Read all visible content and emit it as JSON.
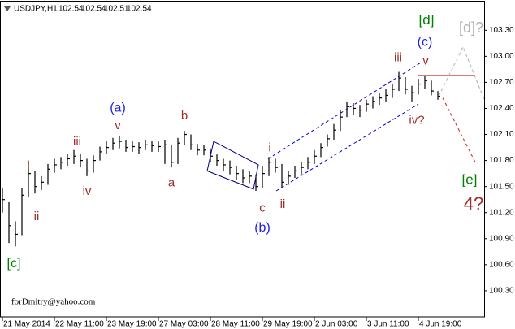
{
  "chart_data": {
    "type": "ohlc",
    "title": "USDJPY,H1",
    "quote": [
      102.54,
      102.54,
      102.51,
      102.54
    ],
    "watermark": "forDmitry@yahoo.com",
    "color": "#000000",
    "xlim": [
      -1.5,
      296.5
    ],
    "xticks": [
      {
        "value": 0,
        "label": "21 May 2014"
      },
      {
        "value": 32,
        "label": "22 May 11:00"
      },
      {
        "value": 64,
        "label": "23 May 19:00"
      },
      {
        "value": 96,
        "label": "27 May 03:00"
      },
      {
        "value": 128,
        "label": "28 May 11:00"
      },
      {
        "value": 160,
        "label": "29 May 19:00"
      },
      {
        "value": 192,
        "label": "2 Jun 03:00"
      },
      {
        "value": 224,
        "label": "3 Jun 11:00"
      },
      {
        "value": 256,
        "label": "4 Jun 19:00"
      }
    ],
    "ylim": [
      100.0,
      103.63
    ],
    "yticks": [
      {
        "value": 103.3,
        "label": "103.30"
      },
      {
        "value": 103.0,
        "label": "103.00"
      },
      {
        "value": 102.7,
        "label": "102.70"
      },
      {
        "value": 102.4,
        "label": "102.40"
      },
      {
        "value": 102.1,
        "label": "102.10"
      },
      {
        "value": 101.8,
        "label": "101.80"
      },
      {
        "value": 101.5,
        "label": "101.50"
      },
      {
        "value": 101.2,
        "label": "101.20"
      },
      {
        "value": 100.9,
        "label": "100.90"
      },
      {
        "value": 100.6,
        "label": "100.60"
      },
      {
        "value": 100.3,
        "label": "100.30"
      }
    ],
    "x": [
      0,
      4,
      8,
      12,
      16,
      20,
      24,
      28,
      32,
      36,
      40,
      44,
      48,
      52,
      56,
      60,
      64,
      68,
      72,
      76,
      80,
      84,
      88,
      92,
      96,
      100,
      104,
      108,
      112,
      116,
      120,
      124,
      128,
      132,
      136,
      140,
      144,
      148,
      152,
      156,
      160,
      164,
      168,
      172,
      176,
      180,
      184,
      188,
      192,
      196,
      200,
      204,
      208,
      212,
      216,
      220,
      224,
      228,
      232,
      236,
      240,
      244,
      248,
      252,
      256,
      260,
      264,
      268
    ],
    "high": [
      101.48,
      101.32,
      101.1,
      101.48,
      101.8,
      101.68,
      101.62,
      101.76,
      101.82,
      101.84,
      101.88,
      101.92,
      101.88,
      101.82,
      101.86,
      101.96,
      102.02,
      102.06,
      102.08,
      102.04,
      102.02,
      102.01,
      102.04,
      102.03,
      102.02,
      102.04,
      101.98,
      102.06,
      102.14,
      102.1,
      101.99,
      101.98,
      101.94,
      101.87,
      101.82,
      101.8,
      101.74,
      101.7,
      101.68,
      101.64,
      101.74,
      101.84,
      101.82,
      101.76,
      101.68,
      101.74,
      101.78,
      101.84,
      101.92,
      102.0,
      102.1,
      102.22,
      102.38,
      102.48,
      102.46,
      102.44,
      102.5,
      102.54,
      102.58,
      102.62,
      102.68,
      102.82,
      102.76,
      102.66,
      102.74,
      102.78,
      102.72,
      102.6
    ],
    "low": [
      101.2,
      100.85,
      100.81,
      100.94,
      101.38,
      101.42,
      101.46,
      101.52,
      101.66,
      101.7,
      101.74,
      101.76,
      101.72,
      101.62,
      101.66,
      101.8,
      101.88,
      101.92,
      101.94,
      101.9,
      101.9,
      101.88,
      101.92,
      101.9,
      101.9,
      101.76,
      101.72,
      101.76,
      101.98,
      101.92,
      101.86,
      101.86,
      101.78,
      101.74,
      101.68,
      101.64,
      101.58,
      101.54,
      101.54,
      101.45,
      101.48,
      101.62,
      101.66,
      101.48,
      101.52,
      101.6,
      101.64,
      101.7,
      101.76,
      101.84,
      101.96,
      102.04,
      102.14,
      102.3,
      102.32,
      102.3,
      102.36,
      102.4,
      102.44,
      102.48,
      102.52,
      102.6,
      102.56,
      102.48,
      102.56,
      102.62,
      102.55,
      102.5
    ],
    "close": [
      101.35,
      101.05,
      100.95,
      101.4,
      101.65,
      101.5,
      101.55,
      101.7,
      101.75,
      101.78,
      101.82,
      101.85,
      101.8,
      101.68,
      101.8,
      101.9,
      101.95,
      102.0,
      102.02,
      101.95,
      101.96,
      101.95,
      101.98,
      101.97,
      101.96,
      101.98,
      101.78,
      102.0,
      102.1,
      101.98,
      101.92,
      101.92,
      101.85,
      101.8,
      101.75,
      101.72,
      101.65,
      101.6,
      101.62,
      101.5,
      101.65,
      101.78,
      101.72,
      101.55,
      101.62,
      101.68,
      101.72,
      101.78,
      101.85,
      101.95,
      102.05,
      102.15,
      102.3,
      102.42,
      102.4,
      102.38,
      102.45,
      102.48,
      102.52,
      102.55,
      102.62,
      102.75,
      102.62,
      102.58,
      102.68,
      102.72,
      102.6,
      102.54
    ],
    "lines": [
      {
        "x": [
          130,
          157.5,
          154.5,
          126,
          130
        ],
        "y": [
          102.02,
          101.75,
          101.47,
          101.68,
          102.02
        ],
        "color": "#00008b",
        "dash": false
      },
      {
        "x": [
          163.5,
          258.5
        ],
        "y": [
          101.82,
          102.94
        ],
        "color": "#0000cd",
        "dash": true
      },
      {
        "x": [
          168.5,
          256
        ],
        "y": [
          101.45,
          102.45
        ],
        "color": "#0000cd",
        "dash": true
      },
      {
        "x": [
          256,
          291
        ],
        "y": [
          102.78,
          102.78
        ],
        "color": "#d02020",
        "dash": false
      },
      {
        "x": [
          271,
          291
        ],
        "y": [
          102.52,
          101.78
        ],
        "color": "#d02020",
        "dash": true
      },
      {
        "x": [
          268.5,
          283.5,
          297
        ],
        "y": [
          102.54,
          103.11,
          102.48
        ],
        "color": "#b0b0b0",
        "dash": true
      }
    ],
    "annotations": [
      {
        "text": "[c]",
        "x": 7,
        "y": 100.61,
        "color": "#008000",
        "size": 16
      },
      {
        "text": "i",
        "x": 16,
        "y": 101.73,
        "color": "#a0302a",
        "size": 15
      },
      {
        "text": "ii",
        "x": 21,
        "y": 101.15,
        "color": "#a0302a",
        "size": 15
      },
      {
        "text": "iii",
        "x": 46,
        "y": 102.01,
        "color": "#a0302a",
        "size": 15
      },
      {
        "text": "iv",
        "x": 52,
        "y": 101.44,
        "color": "#a0302a",
        "size": 15
      },
      {
        "text": "(a)",
        "x": 71,
        "y": 102.4,
        "color": "#2020e0",
        "size": 16
      },
      {
        "text": "v",
        "x": 71,
        "y": 102.2,
        "color": "#a0302a",
        "size": 15
      },
      {
        "text": "a",
        "x": 104,
        "y": 101.54,
        "color": "#a0302a",
        "size": 15
      },
      {
        "text": "b",
        "x": 112,
        "y": 102.31,
        "color": "#a0302a",
        "size": 15
      },
      {
        "text": "c",
        "x": 160,
        "y": 101.25,
        "color": "#a0302a",
        "size": 15
      },
      {
        "text": "(b)",
        "x": 160,
        "y": 101.02,
        "color": "#2020e0",
        "size": 16
      },
      {
        "text": "i",
        "x": 164.5,
        "y": 101.94,
        "color": "#a0302a",
        "size": 15
      },
      {
        "text": "ii",
        "x": 172.5,
        "y": 101.29,
        "color": "#a0302a",
        "size": 15
      },
      {
        "text": "iii",
        "x": 243.5,
        "y": 102.98,
        "color": "#a0302a",
        "size": 15
      },
      {
        "text": "iv?",
        "x": 255,
        "y": 102.26,
        "color": "#a0302a",
        "size": 15
      },
      {
        "text": "v",
        "x": 260.5,
        "y": 102.94,
        "color": "#a0302a",
        "size": 15
      },
      {
        "text": "(c)",
        "x": 260,
        "y": 103.16,
        "color": "#2020e0",
        "size": 16
      },
      {
        "text": "[d]",
        "x": 261,
        "y": 103.41,
        "color": "#008000",
        "size": 17
      },
      {
        "text": "[d]?",
        "x": 288.5,
        "y": 103.32,
        "color": "#b0b0b0",
        "size": 18
      },
      {
        "text": "[e]",
        "x": 287.5,
        "y": 101.57,
        "color": "#008000",
        "size": 17
      },
      {
        "text": "4?",
        "x": 290,
        "y": 101.29,
        "color": "#a0302a",
        "size": 22
      }
    ]
  }
}
